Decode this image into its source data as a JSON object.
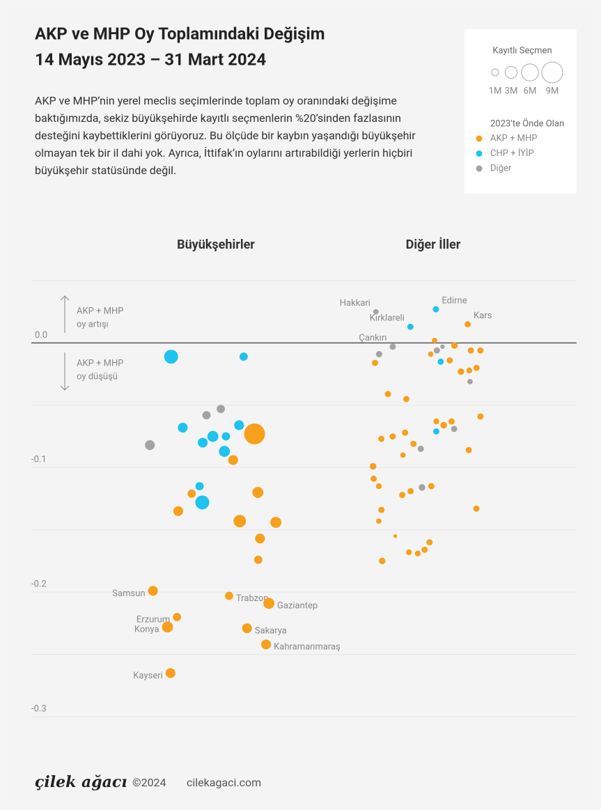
{
  "chart_data": {
    "type": "scatter",
    "title": "AKP ve MHP Oy Toplamındaki Değişim",
    "subtitle": "14 Mayıs 2023 – 31 Mart 2024",
    "description": "AKP ve MHP’nin yerel meclis seçimlerinde toplam oy oranındaki değişime baktığımızda, sekiz büyükşehirde kayıtlı seçmenlerin %20’sinden fazlasının desteğini kaybettiklerini görüyoruz. Bu ölçüde bir kaybın yaşandığı büyükşehir olmayan tek bir il dahi yok. Ayrıca, İttifak’ın oylarını artırabildiği yerlerin hiçbiri büyükşehir statüsünde değil.",
    "ylim": [
      -0.3,
      0.05
    ],
    "yticks": [
      {
        "value": 0,
        "label": "0.0"
      },
      -0.1,
      -0.2,
      -0.3
    ],
    "minor_yticks": [
      0.05,
      -0.05,
      -0.15,
      -0.25
    ],
    "grid": true,
    "annotations": [
      {
        "direction": "up",
        "lines": [
          "AKP + MHP",
          "oy artışı"
        ]
      },
      {
        "direction": "down",
        "lines": [
          "AKP + MHP",
          "oy düşüşü"
        ]
      }
    ],
    "size_legend": {
      "title": "Kayıtlı Seçmen",
      "values": [
        {
          "value": 1,
          "label": "1M"
        },
        {
          "value": 3,
          "label": "3M"
        },
        {
          "value": 6,
          "label": "6M"
        },
        {
          "value": 9,
          "label": "9M"
        }
      ]
    },
    "group_legend": {
      "title": "2023’te Önde Olan",
      "groups": [
        {
          "name": "AKP + MHP",
          "color": "#f7a01d"
        },
        {
          "name": "CHP + İYİP",
          "color": "#1ec3ef"
        },
        {
          "name": "Diğer",
          "color": "#a3a3a3"
        }
      ]
    },
    "series": [
      {
        "name": "Büyükşehirler",
        "values": [
          -0.011,
          -0.011,
          -0.053,
          -0.058,
          -0.068,
          -0.073,
          -0.066,
          -0.075,
          -0.075,
          -0.08,
          -0.082,
          -0.087,
          -0.094,
          -0.115,
          -0.12,
          -0.121,
          -0.128,
          -0.135,
          -0.144,
          -0.143,
          -0.157,
          -0.174,
          -0.199,
          -0.203,
          -0.209,
          -0.22,
          -0.229,
          -0.228,
          -0.242,
          -0.265
        ],
        "sizes": [
          4,
          1.4,
          1.4,
          1.4,
          2,
          9,
          2,
          2.5,
          1.4,
          2,
          2,
          2.5,
          2,
          1.4,
          2.5,
          1.4,
          4,
          2,
          2.5,
          3.2,
          2,
          1.4,
          2,
          1.4,
          2.5,
          1.4,
          2,
          2.5,
          2,
          2
        ],
        "groups": [
          1,
          1,
          2,
          2,
          1,
          0,
          1,
          1,
          1,
          1,
          2,
          1,
          0,
          1,
          0,
          0,
          1,
          0,
          0,
          0,
          0,
          0,
          0,
          0,
          0,
          0,
          0,
          0,
          0,
          0
        ],
        "labels": [
          null,
          null,
          null,
          null,
          null,
          null,
          null,
          null,
          null,
          null,
          null,
          null,
          null,
          null,
          null,
          null,
          null,
          null,
          null,
          null,
          null,
          null,
          "Samsun",
          "Trabzon",
          "Gaziantep",
          "Erzurum",
          "Sakarya",
          "Konya",
          "Kahramanmaraş",
          "Kayseri"
        ]
      },
      {
        "name": "Diğer İller",
        "values": [
          0.027,
          0.025,
          0.013,
          0.015,
          -0.003,
          -0.006,
          -0.003,
          -0.002,
          -0.009,
          -0.006,
          -0.006,
          0.002,
          -0.009,
          -0.015,
          -0.014,
          -0.02,
          -0.022,
          -0.016,
          -0.023,
          -0.031,
          -0.045,
          -0.041,
          -0.059,
          -0.063,
          -0.063,
          -0.066,
          -0.069,
          -0.071,
          -0.072,
          -0.075,
          -0.077,
          -0.081,
          -0.086,
          -0.085,
          -0.09,
          -0.099,
          -0.109,
          -0.115,
          -0.116,
          -0.119,
          -0.122,
          -0.115,
          -0.134,
          -0.133,
          -0.143,
          -0.155,
          -0.16,
          -0.166,
          -0.168,
          -0.175,
          -0.169
        ],
        "sizes": [
          0.8,
          0.6,
          0.8,
          0.8,
          0.8,
          0.8,
          0.4,
          0.9,
          0.8,
          0.8,
          0.8,
          0.6,
          0.6,
          0.8,
          0.8,
          0.8,
          0.7,
          0.8,
          0.9,
          0.6,
          0.8,
          0.8,
          0.8,
          0.7,
          0.8,
          0.9,
          0.8,
          0.8,
          0.8,
          0.8,
          0.8,
          0.8,
          0.8,
          0.8,
          0.6,
          0.9,
          0.8,
          0.8,
          0.9,
          0.8,
          0.8,
          0.7,
          0.8,
          0.8,
          0.6,
          0.3,
          0.8,
          0.8,
          0.7,
          0.9,
          0.7
        ],
        "groups": [
          1,
          2,
          1,
          0,
          2,
          0,
          2,
          0,
          2,
          2,
          0,
          0,
          0,
          1,
          0,
          0,
          0,
          0,
          0,
          2,
          0,
          0,
          0,
          0,
          0,
          0,
          2,
          1,
          0,
          0,
          0,
          0,
          0,
          2,
          0,
          0,
          0,
          0,
          2,
          0,
          0,
          0,
          0,
          0,
          0,
          0,
          0,
          0,
          0,
          0,
          0
        ],
        "labels": [
          "Edirne",
          "Hakkari",
          "Kırklareli",
          "Kars",
          "Çankırı",
          null,
          null,
          null,
          null,
          null,
          null,
          null,
          null,
          null,
          null,
          null,
          null,
          null,
          null,
          null,
          null,
          null,
          null,
          null,
          null,
          null,
          null,
          null,
          null,
          null,
          null,
          null,
          null,
          null,
          null,
          null,
          null,
          null,
          null,
          null,
          null,
          null,
          null,
          null,
          null,
          null,
          null,
          null,
          null,
          null,
          null
        ]
      }
    ]
  },
  "footer": {
    "brand": "çilek ağacı",
    "copyright": "©2024",
    "site": "cilekagaci.com"
  }
}
